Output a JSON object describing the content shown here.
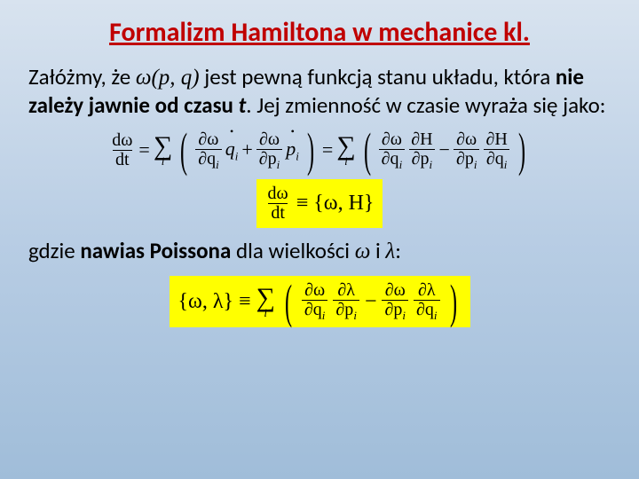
{
  "title": "Formalizm Hamiltona w mechanice kl.",
  "para1_a": "Załóżmy, że",
  "para1_fn": "ω(p, q)",
  "para1_b": "jest pewną funkcją stanu układu, która ",
  "para1_bold": "nie zależy jawnie od czasu ",
  "para1_t": "t",
  "para1_c": ". Jej zmienność w czasie wyraża się jako:",
  "para2_a": "gdzie ",
  "para2_bold": "nawias Poissona",
  "para2_b": " dla wielkości ",
  "para2_w": "ω",
  "para2_i": " i ",
  "para2_l": "λ",
  "para2_colon": ":",
  "eq": {
    "dw": "dω",
    "dt": "dt",
    "partial_w": "∂ω",
    "partial_qi": "∂q",
    "partial_pi": "∂p",
    "partial_H": "∂H",
    "qi_dot": "q",
    "pi_dot": "p",
    "sub_i": "i",
    "eq_sign": "=",
    "plus": "+",
    "minus": "−",
    "poisson": "{ω, H}",
    "poisson2": "{ω, λ}",
    "triple_eq": "≡",
    "partial_l": "∂λ"
  },
  "colors": {
    "title": "#c00000",
    "highlight": "#ffff00",
    "text": "#000000"
  }
}
